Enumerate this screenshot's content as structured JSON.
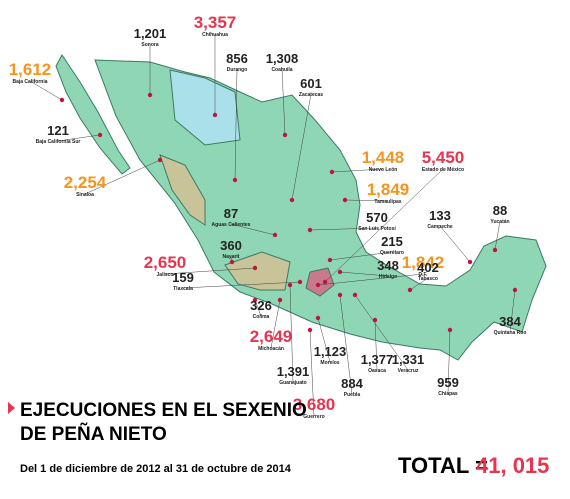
{
  "title": [
    "EJECUCIONES EN EL SEXENIO",
    "DE PEÑA NIETO"
  ],
  "subtitle": "Del 1 de diciembre de 2012 al 31 de octubre de 2014",
  "total": {
    "label": "TOTAL =",
    "value": 41015,
    "value_label": "41, 015",
    "color": "#e8344e"
  },
  "states": [
    {
      "name": "Baja California",
      "value": 1612,
      "label": "1,612",
      "color": "#f7941d"
    },
    {
      "name": "Baja California Sur",
      "value": 121,
      "label": "121",
      "color": "#222222"
    },
    {
      "name": "Sonora",
      "value": 1201,
      "label": "1,201",
      "color": "#222222"
    },
    {
      "name": "Chihuahua",
      "value": 3357,
      "label": "3,357",
      "color": "#e8344e"
    },
    {
      "name": "Durango",
      "value": 856,
      "label": "856",
      "color": "#222222"
    },
    {
      "name": "Coahuila",
      "value": 1308,
      "label": "1,308",
      "color": "#222222"
    },
    {
      "name": "Zacatecas",
      "value": 601,
      "label": "601",
      "color": "#222222"
    },
    {
      "name": "Sinaloa",
      "value": 2254,
      "label": "2,254",
      "color": "#f7941d"
    },
    {
      "name": "Nuevo León",
      "value": 1448,
      "label": "1,448",
      "color": "#f7941d"
    },
    {
      "name": "Tamaulipas",
      "value": 1849,
      "label": "1,849",
      "color": "#f7941d"
    },
    {
      "name": "Estado de México",
      "value": 5450,
      "label": "5,450",
      "color": "#e8344e"
    },
    {
      "name": "Aguas Calientes",
      "value": 87,
      "label": "87",
      "color": "#222222"
    },
    {
      "name": "San Luis Potosí",
      "value": 570,
      "label": "570",
      "color": "#222222"
    },
    {
      "name": "Nayarit",
      "value": 360,
      "label": "360",
      "color": "#222222"
    },
    {
      "name": "Querétaro",
      "value": 215,
      "label": "215",
      "color": "#222222"
    },
    {
      "name": "Jalisco",
      "value": 2650,
      "label": "2,650",
      "color": "#e8344e"
    },
    {
      "name": "Tlaxcala",
      "value": 159,
      "label": "159",
      "color": "#222222"
    },
    {
      "name": "Hidalgo",
      "value": 348,
      "label": "348",
      "color": "#222222"
    },
    {
      "name": "D.F.",
      "value": 1842,
      "label": "1,842",
      "color": "#f7941d"
    },
    {
      "name": "Campeche",
      "value": 133,
      "label": "133",
      "color": "#222222"
    },
    {
      "name": "Yucatán",
      "value": 88,
      "label": "88",
      "color": "#222222"
    },
    {
      "name": "Tabasco",
      "value": 402,
      "label": "402",
      "color": "#222222"
    },
    {
      "name": "Colima",
      "value": 326,
      "label": "326",
      "color": "#222222"
    },
    {
      "name": "Michoacán",
      "value": 2649,
      "label": "2,649",
      "color": "#e8344e"
    },
    {
      "name": "Quintana Roo",
      "value": 384,
      "label": "384",
      "color": "#222222"
    },
    {
      "name": "Morelos",
      "value": 1123,
      "label": "1,123",
      "color": "#222222"
    },
    {
      "name": "Guanajuato",
      "value": 1391,
      "label": "1,391",
      "color": "#222222"
    },
    {
      "name": "Oaxaca",
      "value": 1377,
      "label": "1,377",
      "color": "#222222"
    },
    {
      "name": "Veracruz",
      "value": 1331,
      "label": "1,331",
      "color": "#222222"
    },
    {
      "name": "Puebla",
      "value": 884,
      "label": "884",
      "color": "#222222"
    },
    {
      "name": "Chiapas",
      "value": 959,
      "label": "959",
      "color": "#222222"
    },
    {
      "name": "Guerrero",
      "value": 3680,
      "label": "3,680",
      "color": "#e8344e"
    }
  ]
}
